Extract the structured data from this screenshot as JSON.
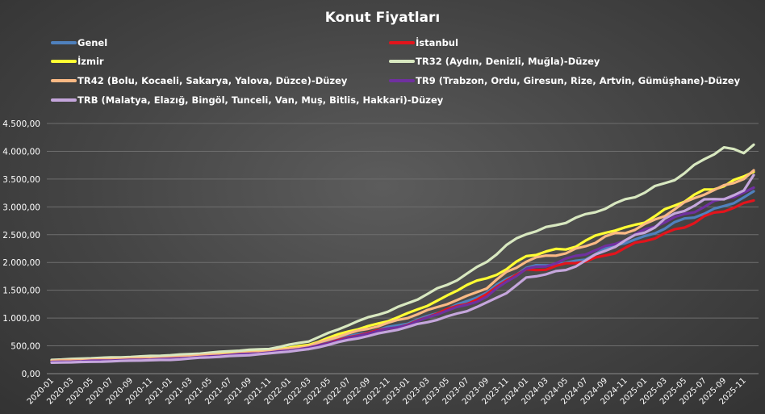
{
  "chart_data": {
    "type": "line",
    "title": "Konut Fiyatları",
    "xlabel": "",
    "ylabel": "",
    "ylim": [
      0,
      4500
    ],
    "yticks": [
      "0,00",
      "500,00",
      "1.000,00",
      "1.500,00",
      "2.000,00",
      "2.500,00",
      "3.000,00",
      "3.500,00",
      "4.000,00",
      "4.500,00"
    ],
    "grid": true,
    "legend_position": "top",
    "x_ticks": [
      "2020-01",
      "2020-03",
      "2020-05",
      "2020-07",
      "2020-09",
      "2020-11",
      "2021-01",
      "2021-03",
      "2021-05",
      "2021-07",
      "2021-09",
      "2021-11",
      "2022-01",
      "2022-03",
      "2022-05",
      "2022-07",
      "2022-09",
      "2022-11",
      "2023-01",
      "2023-03",
      "2023-05",
      "2023-07",
      "2023-09",
      "2023-11",
      "2024-01",
      "2024-03",
      "2024-05",
      "2024-07",
      "2024-09",
      "2024-11",
      "2025-01",
      "2025-03",
      "2025-05",
      "2025-07",
      "2025-09",
      "2025-11"
    ],
    "x_start": "2020-01",
    "x_end": "2025-12",
    "series": [
      {
        "name": "Genel",
        "color": "#4f81bd",
        "anchors": [
          [
            0,
            215
          ],
          [
            12,
            270
          ],
          [
            22,
            390
          ],
          [
            26,
            480
          ],
          [
            30,
            670
          ],
          [
            34,
            830
          ],
          [
            36,
            900
          ],
          [
            40,
            1170
          ],
          [
            42,
            1290
          ],
          [
            44,
            1460
          ],
          [
            46,
            1720
          ],
          [
            48,
            1890
          ],
          [
            50,
            1950
          ],
          [
            52,
            1990
          ],
          [
            54,
            2080
          ],
          [
            56,
            2220
          ],
          [
            58,
            2370
          ],
          [
            60,
            2470
          ],
          [
            62,
            2620
          ],
          [
            64,
            2760
          ],
          [
            66,
            2900
          ],
          [
            68,
            3020
          ],
          [
            70,
            3150
          ],
          [
            71,
            3240
          ],
          [
            72,
            3240
          ]
        ]
      },
      {
        "name": "İstanbul",
        "color": "#e3141c",
        "anchors": [
          [
            0,
            205
          ],
          [
            12,
            260
          ],
          [
            22,
            380
          ],
          [
            26,
            470
          ],
          [
            30,
            650
          ],
          [
            34,
            810
          ],
          [
            36,
            880
          ],
          [
            40,
            1150
          ],
          [
            42,
            1270
          ],
          [
            44,
            1420
          ],
          [
            46,
            1680
          ],
          [
            48,
            1860
          ],
          [
            50,
            1900
          ],
          [
            52,
            1960
          ],
          [
            54,
            2020
          ],
          [
            56,
            2130
          ],
          [
            58,
            2270
          ],
          [
            60,
            2370
          ],
          [
            62,
            2520
          ],
          [
            64,
            2660
          ],
          [
            66,
            2800
          ],
          [
            68,
            2930
          ],
          [
            70,
            3060
          ],
          [
            71,
            3130
          ],
          [
            72,
            3110
          ]
        ]
      },
      {
        "name": "İzmir",
        "color": "#ffff33",
        "anchors": [
          [
            0,
            235
          ],
          [
            12,
            300
          ],
          [
            22,
            420
          ],
          [
            26,
            520
          ],
          [
            30,
            760
          ],
          [
            34,
            950
          ],
          [
            36,
            1070
          ],
          [
            40,
            1400
          ],
          [
            42,
            1600
          ],
          [
            44,
            1700
          ],
          [
            46,
            1900
          ],
          [
            48,
            2110
          ],
          [
            50,
            2180
          ],
          [
            52,
            2250
          ],
          [
            54,
            2390
          ],
          [
            56,
            2540
          ],
          [
            58,
            2600
          ],
          [
            60,
            2760
          ],
          [
            62,
            2930
          ],
          [
            64,
            3100
          ],
          [
            66,
            3300
          ],
          [
            68,
            3400
          ],
          [
            70,
            3520
          ],
          [
            71,
            3640
          ],
          [
            72,
            3630
          ]
        ]
      },
      {
        "name": "TR32 (Aydın, Denizli, Muğla)-Düzey",
        "color": "#d8e8c0",
        "anchors": [
          [
            0,
            250
          ],
          [
            12,
            330
          ],
          [
            22,
            450
          ],
          [
            26,
            580
          ],
          [
            30,
            880
          ],
          [
            34,
            1120
          ],
          [
            36,
            1270
          ],
          [
            40,
            1590
          ],
          [
            42,
            1800
          ],
          [
            44,
            2030
          ],
          [
            46,
            2280
          ],
          [
            48,
            2530
          ],
          [
            50,
            2630
          ],
          [
            52,
            2730
          ],
          [
            54,
            2830
          ],
          [
            56,
            3000
          ],
          [
            58,
            3130
          ],
          [
            60,
            3250
          ],
          [
            62,
            3420
          ],
          [
            64,
            3620
          ],
          [
            66,
            3860
          ],
          [
            68,
            4040
          ],
          [
            70,
            4000
          ],
          [
            71,
            4150
          ],
          [
            72,
            4130
          ]
        ]
      },
      {
        "name": "TR42 (Bolu, Kocaeli, Sakarya, Yalova, Düzce)-Düzey",
        "color": "#fab984",
        "anchors": [
          [
            0,
            230
          ],
          [
            12,
            290
          ],
          [
            22,
            400
          ],
          [
            26,
            500
          ],
          [
            30,
            720
          ],
          [
            34,
            910
          ],
          [
            36,
            1000
          ],
          [
            40,
            1270
          ],
          [
            42,
            1380
          ],
          [
            44,
            1540
          ],
          [
            46,
            1830
          ],
          [
            48,
            2030
          ],
          [
            50,
            2100
          ],
          [
            52,
            2170
          ],
          [
            54,
            2310
          ],
          [
            56,
            2450
          ],
          [
            58,
            2530
          ],
          [
            60,
            2690
          ],
          [
            62,
            2860
          ],
          [
            64,
            3040
          ],
          [
            66,
            3250
          ],
          [
            68,
            3380
          ],
          [
            70,
            3510
          ],
          [
            71,
            3620
          ],
          [
            72,
            3630
          ]
        ]
      },
      {
        "name": "TR9 (Trabzon, Ordu, Giresun, Rize, Artvin, Gümüşhane)-Düzey",
        "color": "#7030a0",
        "anchors": [
          [
            0,
            210
          ],
          [
            12,
            265
          ],
          [
            22,
            380
          ],
          [
            26,
            460
          ],
          [
            30,
            640
          ],
          [
            34,
            800
          ],
          [
            36,
            880
          ],
          [
            40,
            1130
          ],
          [
            42,
            1240
          ],
          [
            44,
            1390
          ],
          [
            46,
            1650
          ],
          [
            48,
            1870
          ],
          [
            50,
            1960
          ],
          [
            52,
            2050
          ],
          [
            54,
            2150
          ],
          [
            56,
            2280
          ],
          [
            58,
            2430
          ],
          [
            60,
            2560
          ],
          [
            62,
            2730
          ],
          [
            64,
            2880
          ],
          [
            66,
            3000
          ],
          [
            68,
            3130
          ],
          [
            70,
            3260
          ],
          [
            71,
            3340
          ],
          [
            72,
            3360
          ]
        ]
      },
      {
        "name": "TRB (Malatya, Elazığ, Bingöl, Tunceli, Van, Muş, Bitlis, Hakkari)-Düzey",
        "color": "#c5a6dc",
        "anchors": [
          [
            0,
            195
          ],
          [
            12,
            250
          ],
          [
            22,
            360
          ],
          [
            26,
            440
          ],
          [
            30,
            600
          ],
          [
            34,
            760
          ],
          [
            36,
            830
          ],
          [
            40,
            1030
          ],
          [
            42,
            1130
          ],
          [
            44,
            1260
          ],
          [
            46,
            1470
          ],
          [
            48,
            1720
          ],
          [
            50,
            1790
          ],
          [
            52,
            1850
          ],
          [
            54,
            2060
          ],
          [
            56,
            2200
          ],
          [
            58,
            2380
          ],
          [
            60,
            2560
          ],
          [
            62,
            2780
          ],
          [
            64,
            2930
          ],
          [
            66,
            3110
          ],
          [
            68,
            3180
          ],
          [
            70,
            3260
          ],
          [
            71,
            3560
          ],
          [
            72,
            3490
          ]
        ]
      }
    ]
  }
}
